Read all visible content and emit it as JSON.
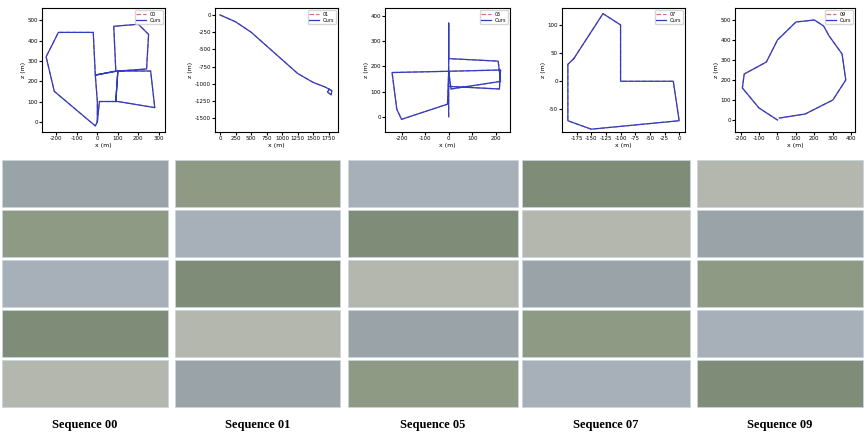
{
  "chart_data": [
    {
      "type": "line",
      "xlabel": "x (m)",
      "ylabel": "z (m)",
      "legend": "upper right",
      "xlim": [
        -270,
        330
      ],
      "xticks": [
        -200,
        -100,
        0,
        100,
        200,
        300
      ],
      "ylim": [
        -50,
        560
      ],
      "yticks": [
        0,
        100,
        200,
        300,
        400,
        500
      ],
      "series": [
        {
          "name": "00",
          "color": "#e07070",
          "line_style": "dashed",
          "x": [
            0,
            0,
            -10,
            -20,
            -190,
            -250,
            -210,
            -10,
            0,
            10,
            100,
            280,
            260,
            100,
            90,
            100,
            -10,
            90,
            80,
            200,
            250,
            240,
            100
          ],
          "values": [
            0,
            100,
            230,
            440,
            440,
            320,
            150,
            -20,
            0,
            100,
            100,
            70,
            250,
            250,
            100,
            250,
            230,
            250,
            470,
            480,
            430,
            260,
            250
          ]
        },
        {
          "name": "Ours",
          "color": "#2b3fc4",
          "line_style": "solid",
          "x": [
            0,
            0,
            -10,
            -20,
            -190,
            -250,
            -210,
            -10,
            0,
            10,
            100,
            280,
            260,
            100,
            90,
            100,
            -10,
            90,
            80,
            200,
            250,
            240,
            100
          ],
          "values": [
            0,
            100,
            230,
            440,
            440,
            320,
            150,
            -20,
            0,
            100,
            100,
            70,
            250,
            250,
            100,
            250,
            230,
            250,
            470,
            480,
            430,
            260,
            250
          ]
        }
      ]
    },
    {
      "type": "line",
      "xlabel": "x (m)",
      "ylabel": "z (m)",
      "legend": "upper right",
      "xlim": [
        -80,
        1900
      ],
      "xticks": [
        0,
        250,
        500,
        750,
        1000,
        1250,
        1500,
        1750
      ],
      "ylim": [
        -1700,
        100
      ],
      "yticks": [
        -1500,
        -1250,
        -1000,
        -750,
        -500,
        -250,
        0
      ],
      "series": [
        {
          "name": "01",
          "color": "#e07070",
          "line_style": "dashed",
          "x": [
            0,
            250,
            500,
            750,
            1000,
            1250,
            1500,
            1700,
            1800,
            1790,
            1730,
            1760
          ],
          "values": [
            0,
            -100,
            -250,
            -450,
            -650,
            -850,
            -980,
            -1050,
            -1100,
            -1160,
            -1120,
            -1080
          ]
        },
        {
          "name": "Ours",
          "color": "#2b3fc4",
          "line_style": "solid",
          "x": [
            0,
            250,
            500,
            750,
            1000,
            1250,
            1500,
            1700,
            1800,
            1790,
            1730,
            1760
          ],
          "values": [
            0,
            -100,
            -250,
            -450,
            -650,
            -850,
            -980,
            -1050,
            -1100,
            -1160,
            -1120,
            -1080
          ]
        }
      ]
    },
    {
      "type": "line",
      "xlabel": "x (m)",
      "ylabel": "z (m)",
      "legend": "upper right",
      "xlim": [
        -270,
        260
      ],
      "xticks": [
        -200,
        -100,
        0,
        100,
        200
      ],
      "ylim": [
        -60,
        430
      ],
      "yticks": [
        0,
        100,
        200,
        300,
        400
      ],
      "series": [
        {
          "name": "05",
          "color": "#e07070",
          "line_style": "dashed",
          "x": [
            0,
            0,
            0,
            0,
            210,
            220,
            10,
            0,
            -240,
            -220,
            -200,
            -5,
            0,
            220,
            215,
            5
          ],
          "values": [
            0,
            180,
            370,
            230,
            220,
            140,
            110,
            180,
            175,
            30,
            -10,
            50,
            180,
            185,
            110,
            120
          ]
        },
        {
          "name": "Ours",
          "color": "#2b3fc4",
          "line_style": "solid",
          "x": [
            0,
            0,
            0,
            0,
            210,
            220,
            10,
            0,
            -240,
            -220,
            -200,
            -5,
            0,
            220,
            215,
            5
          ],
          "values": [
            0,
            180,
            370,
            230,
            220,
            140,
            110,
            180,
            175,
            30,
            -10,
            50,
            180,
            185,
            110,
            120
          ]
        }
      ]
    },
    {
      "type": "line",
      "xlabel": "x (m)",
      "ylabel": "z (m)",
      "legend": "upper right",
      "xlim": [
        -200,
        10
      ],
      "xticks": [
        -175,
        -150,
        -125,
        -100,
        -75,
        -50,
        -25,
        0
      ],
      "ylim": [
        -90,
        130
      ],
      "yticks": [
        -50,
        0,
        50,
        100
      ],
      "series": [
        {
          "name": "07",
          "color": "#e07070",
          "line_style": "dashed",
          "x": [
            -180,
            -130,
            -100,
            -100,
            -10,
            0,
            -150,
            -190,
            -190,
            -180
          ],
          "values": [
            40,
            120,
            100,
            0,
            0,
            -70,
            -85,
            -70,
            30,
            40
          ]
        },
        {
          "name": "Ours",
          "color": "#2b3fc4",
          "line_style": "solid",
          "x": [
            -180,
            -130,
            -100,
            -100,
            -10,
            0,
            -150,
            -190,
            -190,
            -180
          ],
          "values": [
            40,
            120,
            100,
            0,
            0,
            -70,
            -85,
            -70,
            30,
            40
          ]
        }
      ]
    },
    {
      "type": "line",
      "xlabel": "x (m)",
      "ylabel": "z (m)",
      "legend": "upper right",
      "xlim": [
        -230,
        420
      ],
      "xticks": [
        -200,
        -100,
        0,
        100,
        200,
        300,
        400
      ],
      "ylim": [
        -60,
        560
      ],
      "yticks": [
        0,
        100,
        200,
        300,
        400,
        500
      ],
      "series": [
        {
          "name": "09",
          "color": "#e07070",
          "line_style": "dashed",
          "x": [
            0,
            -100,
            -190,
            -180,
            -60,
            0,
            100,
            200,
            250,
            280,
            350,
            370,
            300,
            150,
            10
          ],
          "values": [
            0,
            60,
            160,
            230,
            290,
            400,
            490,
            500,
            470,
            420,
            330,
            200,
            100,
            30,
            10
          ]
        },
        {
          "name": "Ours",
          "color": "#2b3fc4",
          "line_style": "solid",
          "x": [
            0,
            -100,
            -190,
            -180,
            -60,
            0,
            100,
            200,
            250,
            280,
            350,
            370,
            300,
            150,
            10
          ],
          "values": [
            0,
            60,
            160,
            230,
            290,
            400,
            490,
            500,
            470,
            420,
            330,
            200,
            100,
            30,
            10
          ]
        }
      ]
    }
  ],
  "captions": [
    "Sequence 00",
    "Sequence 01",
    "Sequence 05",
    "Sequence 07",
    "Sequence 09"
  ]
}
